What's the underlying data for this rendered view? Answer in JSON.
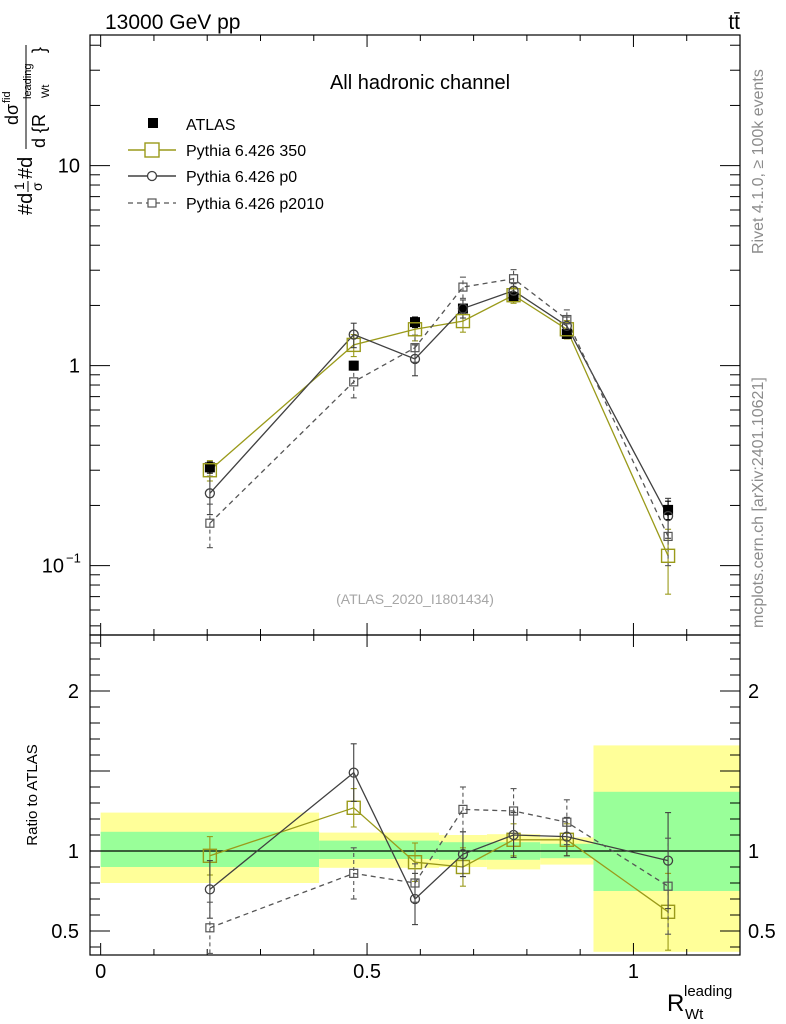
{
  "header": {
    "left": "13000 GeV pp",
    "right": "tt̄"
  },
  "side_labels": {
    "rivet": "Rivet 4.1.0, ≥ 100k events",
    "mcplots": "mcplots.cern.ch [arXiv:2401.10621]"
  },
  "chart_data": {
    "type": "scatter",
    "title": "All hadronic channel",
    "watermark": "(ATLAS_2020_I1801434)",
    "xlabel": {
      "main": "R",
      "sup": "leading",
      "sub": "Wt"
    },
    "ylabel": {
      "prefix": "#d",
      "frac1_num": "1",
      "frac1_den": "σ",
      "mid": "#d",
      "frac2_num": "dσ",
      "frac2_num_sup": "fid",
      "frac2_den": "d {R",
      "frac2_den_sup": "leading",
      "frac2_den_sub": "Wt",
      "suffix": "}"
    },
    "xlim": [
      -0.02,
      1.2
    ],
    "ylim": [
      0.045,
      45
    ],
    "yscale": "log",
    "x_ticks": [
      {
        "value": 0,
        "label": "0"
      },
      {
        "value": 0.5,
        "label": "0.5"
      },
      {
        "value": 1,
        "label": "1"
      }
    ],
    "y_ticks": [
      {
        "value": 0.1,
        "label": "10",
        "sup": "−1"
      },
      {
        "value": 1,
        "label": "1",
        "sup": ""
      },
      {
        "value": 10,
        "label": "10",
        "sup": ""
      }
    ],
    "x": [
      0.205,
      0.475,
      0.59,
      0.68,
      0.775,
      0.875,
      1.065
    ],
    "bin_edges": [
      0,
      0.41,
      0.54,
      0.635,
      0.725,
      0.825,
      0.925,
      1.2
    ],
    "data": {
      "name": "ATLAS",
      "values": [
        0.31,
        1.0,
        1.65,
        1.93,
        2.2,
        1.44,
        0.19
      ],
      "err_lo": [
        0.02,
        0.05,
        0.1,
        0.1,
        0.1,
        0.07,
        0.02
      ],
      "err_hi": [
        0.02,
        0.05,
        0.1,
        0.1,
        0.1,
        0.07,
        0.02
      ]
    },
    "series": [
      {
        "name": "Pythia 6.426 350",
        "color": "#9a9a1a",
        "dashed": false,
        "marker": "square-large",
        "values": [
          0.3,
          1.27,
          1.52,
          1.67,
          2.25,
          1.52,
          0.112
        ],
        "err_lo": [
          0.035,
          0.16,
          0.19,
          0.2,
          0.2,
          0.16,
          0.04
        ],
        "err_hi": [
          0.035,
          0.16,
          0.19,
          0.2,
          0.2,
          0.16,
          0.04
        ]
      },
      {
        "name": "Pythia 6.426 p0",
        "color": "#404040",
        "dashed": false,
        "marker": "circle",
        "values": [
          0.23,
          1.43,
          1.08,
          1.93,
          2.37,
          1.58,
          0.177
        ],
        "err_lo": [
          0.05,
          0.2,
          0.19,
          0.2,
          0.2,
          0.17,
          0.04
        ],
        "err_hi": [
          0.05,
          0.2,
          0.19,
          0.2,
          0.2,
          0.17,
          0.04
        ]
      },
      {
        "name": "Pythia 6.426 p2010",
        "color": "#555555",
        "dashed": true,
        "marker": "square-small",
        "values": [
          0.163,
          0.83,
          1.23,
          2.47,
          2.72,
          1.7,
          0.14
        ],
        "err_lo": [
          0.04,
          0.14,
          0.19,
          0.3,
          0.3,
          0.2,
          0.04
        ],
        "err_hi": [
          0.04,
          0.14,
          0.19,
          0.3,
          0.3,
          0.2,
          0.04
        ]
      }
    ],
    "ratio": {
      "ylabel": "Ratio to ATLAS",
      "ylim": [
        0.35,
        2.35
      ],
      "y_ticks": [
        {
          "value": 0.5,
          "label": "0.5"
        },
        {
          "value": 1,
          "label": "1"
        },
        {
          "value": 2,
          "label": "2"
        }
      ],
      "bands": [
        {
          "x0": 0,
          "x1": 0.41,
          "yellow": [
            0.8,
            1.24
          ],
          "green": [
            0.9,
            1.12
          ]
        },
        {
          "x0": 0.41,
          "x1": 0.635,
          "yellow": [
            0.895,
            1.115
          ],
          "green": [
            0.95,
            1.065
          ]
        },
        {
          "x0": 0.635,
          "x1": 0.725,
          "yellow": [
            0.9,
            1.1
          ],
          "green": [
            0.945,
            1.055
          ]
        },
        {
          "x0": 0.725,
          "x1": 0.825,
          "yellow": [
            0.885,
            1.105
          ],
          "green": [
            0.945,
            1.055
          ]
        },
        {
          "x0": 0.825,
          "x1": 0.925,
          "yellow": [
            0.915,
            1.085
          ],
          "green": [
            0.955,
            1.045
          ]
        },
        {
          "x0": 0.925,
          "x1": 1.2,
          "yellow": [
            0.37,
            1.66
          ],
          "green": [
            0.75,
            1.37
          ]
        }
      ],
      "series": [
        {
          "name": "Pythia 6.426 350",
          "values": [
            0.97,
            1.27,
            0.93,
            0.9,
            1.07,
            1.07,
            0.62
          ],
          "err_lo": [
            0.12,
            0.12,
            0.12,
            0.12,
            0.1,
            0.1,
            0.24
          ],
          "err_hi": [
            0.12,
            0.12,
            0.12,
            0.12,
            0.1,
            0.1,
            0.24
          ]
        },
        {
          "name": "Pythia 6.426 p0",
          "values": [
            0.76,
            1.49,
            0.7,
            0.98,
            1.1,
            1.09,
            0.94
          ],
          "err_lo": [
            0.18,
            0.18,
            0.16,
            0.14,
            0.14,
            0.12,
            0.3
          ],
          "err_hi": [
            0.18,
            0.18,
            0.16,
            0.14,
            0.14,
            0.12,
            0.3
          ]
        },
        {
          "name": "Pythia 6.426 p2010",
          "values": [
            0.52,
            0.86,
            0.8,
            1.26,
            1.25,
            1.18,
            0.78
          ],
          "err_lo": [
            0.16,
            0.16,
            0.12,
            0.14,
            0.14,
            0.14,
            0.3
          ],
          "err_hi": [
            0.16,
            0.16,
            0.12,
            0.14,
            0.14,
            0.14,
            0.3
          ]
        }
      ]
    }
  }
}
